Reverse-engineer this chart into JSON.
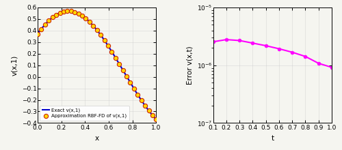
{
  "left_plot": {
    "xlabel": "x",
    "ylabel": "v(x,1)",
    "xlim": [
      0,
      1
    ],
    "ylim": [
      -0.4,
      0.6
    ],
    "yticks": [
      -0.4,
      -0.3,
      -0.2,
      -0.1,
      0,
      0.1,
      0.2,
      0.3,
      0.4,
      0.5,
      0.6
    ],
    "xticks": [
      0,
      0.2,
      0.4,
      0.6,
      0.8,
      1.0
    ],
    "exact_color": "#0000CC",
    "approx_edge_color": "#CC2200",
    "approx_face_color": "#FFD700",
    "legend": [
      "Exact v(x,1)",
      "Approximation RBF-FD of v(x,1)"
    ],
    "N_points": 33,
    "marker_size": 4.5,
    "line_width": 1.5
  },
  "right_plot": {
    "xlabel": "t",
    "ylabel": "Error v(x,t)",
    "xlim": [
      0.1,
      1.0
    ],
    "ylim_low": 1e-07,
    "ylim_high": 1e-05,
    "xticks": [
      0.1,
      0.2,
      0.3,
      0.4,
      0.5,
      0.6,
      0.7,
      0.8,
      0.9,
      1.0
    ],
    "t_values": [
      0.1,
      0.2,
      0.3,
      0.4,
      0.5,
      0.6,
      0.7,
      0.8,
      0.9,
      1.0
    ],
    "error_values": [
      2.55e-06,
      2.78e-06,
      2.68e-06,
      2.42e-06,
      2.18e-06,
      1.93e-06,
      1.68e-06,
      1.42e-06,
      1.08e-06,
      9.2e-07
    ],
    "line_color": "#FF00FF",
    "marker_color": "#FF00FF",
    "marker_size": 3.5,
    "line_width": 1.5
  },
  "fig_bg": "#f5f5f0",
  "ax_bg": "#f5f5f0"
}
